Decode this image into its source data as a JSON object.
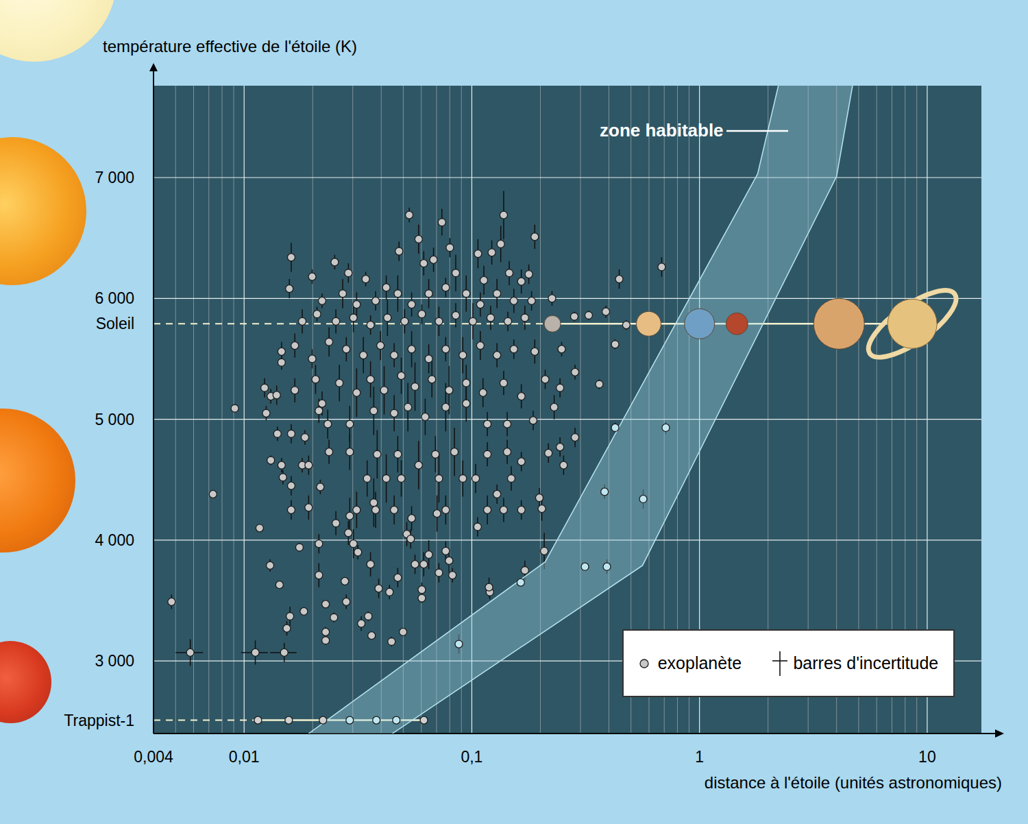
{
  "chart_data": {
    "type": "scatter",
    "x_label": "distance à l'étoile (unités astronomiques)",
    "y_label": "température effective de l'étoile (K)",
    "log": "x",
    "grid": true,
    "legend": "lower right",
    "xlim": [
      0.004,
      17.3
    ],
    "xticks": [
      {
        "value": 0.004,
        "label": "0,004"
      },
      {
        "value": 0.01,
        "label": "0,01"
      },
      {
        "value": 0.1,
        "label": "0,1"
      },
      1,
      10
    ],
    "ylim": [
      2400,
      7760
    ],
    "yticks": [
      {
        "value": 3000,
        "label": "3 000"
      },
      {
        "value": 4000,
        "label": "4 000"
      },
      {
        "value": 5000,
        "label": "5 000"
      },
      {
        "value": 6000,
        "label": "6 000"
      },
      {
        "value": 7000,
        "label": "7 000"
      },
      {
        "value": 5790,
        "label": "Soleil"
      },
      {
        "value": 2510,
        "label": "Trappist-1"
      }
    ],
    "error_bars_name": "barres d'incertitude",
    "habitable_zone": {
      "label": "zone habitable",
      "color": "#9fd6e6",
      "inner": {
        "x": [
          0.0192,
          0.21,
          1.8,
          2.22
        ],
        "y": [
          2400,
          3820,
          7030,
          7760
        ]
      },
      "outer": {
        "x": [
          0.0448,
          0.562,
          4.0,
          4.7
        ],
        "y": [
          2400,
          3790,
          7010,
          7760
        ]
      }
    },
    "series": [
      {
        "name": "exoplanète",
        "color": "#c8c8c8",
        "marker": "circle",
        "x": [
          0.0048,
          0.0058,
          0.0073,
          0.0091,
          0.0112,
          0.015,
          0.0117,
          0.013,
          0.0143,
          0.0154,
          0.0159,
          0.0175,
          0.0183,
          0.0228,
          0.0228,
          0.0248,
          0.0228,
          0.0277,
          0.0287,
          0.0327,
          0.0351,
          0.0363,
          0.0444,
          0.0499,
          0.0161,
          0.0199,
          0.0531,
          0.0739,
          0.138,
          0.189,
          0.0479,
          0.0679,
          0.0801,
          0.1064,
          0.1224,
          0.134,
          0.146,
          0.178,
          0.025,
          0.0287,
          0.0342,
          0.0421,
          0.0584,
          0.0615,
          0.085,
          0.113,
          0.165,
          0.0158,
          0.018,
          0.022,
          0.0271,
          0.0312,
          0.0378,
          0.0473,
          0.0544,
          0.0647,
          0.0768,
          0.0945,
          0.109,
          0.129,
          0.153,
          0.183,
          0.0209,
          0.0253,
          0.0302,
          0.0359,
          0.0426,
          0.0507,
          0.0603,
          0.0717,
          0.085,
          0.101,
          0.121,
          0.144,
          0.171,
          0.0146,
          0.0146,
          0.0167,
          0.0199,
          0.0236,
          0.0281,
          0.0334,
          0.0397,
          0.0456,
          0.0544,
          0.0647,
          0.0768,
          0.0913,
          0.109,
          0.129,
          0.153,
          0.0123,
          0.0131,
          0.0125,
          0.0139,
          0.0167,
          0.0206,
          0.022,
          0.0262,
          0.0312,
          0.0359,
          0.0412,
          0.049,
          0.0563,
          0.0668,
          0.0795,
          0.0945,
          0.112,
          0.138,
          0.165,
          0.21,
          0.014,
          0.0161,
          0.0185,
          0.0213,
          0.0233,
          0.0291,
          0.0371,
          0.0456,
          0.0524,
          0.0624,
          0.0768,
          0.0945,
          0.117,
          0.143,
          0.186,
          0.0236,
          0.0291,
          0.0384,
          0.0473,
          0.0584,
          0.0692,
          0.0839,
          0.117,
          0.143,
          0.165,
          0.217,
          0.0131,
          0.0146,
          0.0148,
          0.0161,
          0.018,
          0.0192,
          0.0216,
          0.0347,
          0.0421,
          0.049,
          0.0717,
          0.0913,
          0.104,
          0.149,
          0.129,
          0.138,
          0.165,
          0.198,
          0.117,
          0.0161,
          0.0192,
          0.0291,
          0.0371,
          0.0378,
          0.0456,
          0.0544,
          0.0703,
          0.0768,
          0.106,
          0.0518,
          0.0539,
          0.0253,
          0.0312,
          0.0302,
          0.0213,
          0.0316,
          0.0359,
          0.0563,
          0.0615,
          0.0647,
          0.0768,
          0.0795,
          0.0822,
          0.0717,
          0.0603,
          0.0603,
          0.0473,
          0.0435,
          0.039,
          0.0281,
          0.0213,
          0.12,
          0.119,
          0.171,
          0.203,
          0.208,
          0.244,
          0.253,
          0.284,
          0.23,
          0.244,
          0.189,
          0.248,
          0.225,
          0.282,
          0.326,
          0.388,
          0.444,
          0.682,
          0.477,
          0.426,
          0.284,
          0.363
        ],
        "values": [
          3490,
          3070,
          4380,
          5090,
          3070,
          3070,
          4100,
          3790,
          3630,
          3270,
          3370,
          3940,
          3410,
          3240,
          3470,
          3360,
          3170,
          3660,
          4060,
          3310,
          3370,
          3210,
          3160,
          3240,
          6340,
          6180,
          6690,
          6630,
          6690,
          6510,
          6390,
          6320,
          6420,
          6370,
          6380,
          6450,
          6210,
          6200,
          6300,
          6210,
          6160,
          6090,
          6490,
          6290,
          6210,
          6150,
          6140,
          6080,
          5810,
          5980,
          6040,
          5950,
          5980,
          6040,
          5950,
          6040,
          6090,
          6040,
          5950,
          6040,
          5980,
          5980,
          5870,
          5810,
          5840,
          5780,
          5840,
          5810,
          5870,
          5810,
          5860,
          5810,
          5840,
          5810,
          5840,
          5560,
          5470,
          5610,
          5500,
          5640,
          5580,
          5530,
          5610,
          5530,
          5580,
          5500,
          5580,
          5530,
          5610,
          5530,
          5580,
          5260,
          5190,
          5050,
          5200,
          5240,
          5330,
          5130,
          5300,
          5220,
          5330,
          5240,
          5360,
          5270,
          5330,
          5240,
          5300,
          5220,
          5300,
          5190,
          5330,
          4880,
          4880,
          4850,
          5070,
          4960,
          4960,
          5070,
          5050,
          5100,
          5020,
          5100,
          5130,
          4960,
          4960,
          4990,
          4730,
          4730,
          4710,
          4710,
          4620,
          4710,
          4730,
          4710,
          4730,
          4650,
          4720,
          4660,
          4620,
          4520,
          4450,
          4620,
          4620,
          4440,
          4510,
          4510,
          4510,
          4510,
          4510,
          4510,
          4510,
          4380,
          4250,
          4250,
          4350,
          4250,
          4250,
          4270,
          4200,
          4310,
          4250,
          4250,
          4180,
          4220,
          4250,
          4110,
          4050,
          4010,
          4140,
          4250,
          3970,
          3970,
          3900,
          3800,
          3800,
          3800,
          3880,
          3910,
          3830,
          3710,
          3730,
          3590,
          3520,
          3690,
          3570,
          3600,
          3490,
          3710,
          3570,
          3610,
          3750,
          4260,
          3910,
          4770,
          4620,
          4850,
          5100,
          5260,
          5560,
          5580,
          6000,
          5850,
          5860,
          5890,
          6160,
          6260,
          5780,
          5620,
          5390,
          5290
        ],
        "y_err": [
          60,
          110,
          30,
          20,
          100,
          80,
          20,
          50,
          20,
          60,
          80,
          20,
          20,
          40,
          30,
          40,
          30,
          20,
          100,
          60,
          40,
          20,
          40,
          30,
          120,
          60,
          60,
          110,
          200,
          100,
          80,
          100,
          80,
          120,
          100,
          150,
          100,
          80,
          60,
          80,
          60,
          100,
          120,
          100,
          150,
          120,
          100,
          80,
          100,
          60,
          120,
          100,
          80,
          150,
          100,
          120,
          80,
          150,
          100,
          120,
          100,
          80,
          60,
          100,
          120,
          80,
          150,
          100,
          80,
          120,
          100,
          150,
          100,
          80,
          100,
          80,
          60,
          100,
          80,
          120,
          100,
          150,
          120,
          100,
          150,
          120,
          100,
          150,
          120,
          100,
          80,
          80,
          60,
          60,
          80,
          100,
          120,
          100,
          150,
          200,
          150,
          200,
          150,
          200,
          150,
          200,
          150,
          120,
          100,
          100,
          80,
          60,
          80,
          60,
          100,
          120,
          150,
          200,
          150,
          200,
          150,
          200,
          150,
          100,
          100,
          80,
          100,
          150,
          200,
          150,
          200,
          150,
          200,
          100,
          100,
          80,
          80,
          40,
          60,
          60,
          80,
          60,
          80,
          60,
          150,
          200,
          150,
          200,
          150,
          120,
          100,
          80,
          100,
          80,
          80,
          120,
          80,
          100,
          150,
          200,
          150,
          120,
          100,
          150,
          120,
          80,
          100,
          80,
          100,
          150,
          120,
          80,
          60,
          100,
          80,
          100,
          120,
          80,
          100,
          60,
          80,
          60,
          40,
          80,
          60,
          80,
          60,
          100,
          60,
          80,
          80,
          100,
          150,
          80,
          80,
          80,
          100,
          80,
          100,
          60,
          60,
          40,
          40,
          50,
          80,
          80,
          40,
          40,
          60,
          40
        ],
        "x_err": [
          null,
          0.0008,
          null,
          null,
          0.0015,
          0.002,
          null,
          null,
          null,
          null,
          null,
          null,
          null,
          null,
          null,
          null,
          null,
          null,
          null,
          null,
          null,
          null,
          null,
          null,
          null,
          null,
          null,
          null,
          null,
          null,
          null,
          null,
          null,
          null,
          null,
          null,
          null,
          null,
          null,
          null,
          null,
          null,
          null,
          null,
          null,
          null,
          null,
          null,
          null,
          null,
          null,
          null,
          null,
          null,
          null,
          null,
          null,
          null,
          null,
          null,
          null,
          null,
          null,
          null,
          null,
          null,
          null,
          null,
          null,
          null,
          null,
          null,
          null,
          null,
          null,
          null,
          null,
          null,
          null,
          null,
          null,
          null,
          null,
          null,
          null,
          null,
          null,
          null,
          null,
          null,
          null,
          null,
          null,
          null,
          null,
          null,
          null,
          null,
          null,
          null,
          null,
          null,
          null,
          null,
          null,
          null,
          null,
          null,
          null,
          null,
          null,
          null,
          null,
          null,
          null,
          null,
          null,
          null,
          null,
          null,
          null,
          null,
          null,
          null,
          null,
          null,
          null,
          null,
          null,
          null,
          null,
          null,
          null,
          null,
          null,
          null,
          null,
          null,
          null,
          null,
          null,
          null,
          null,
          null,
          null,
          null,
          null,
          null,
          null,
          null,
          null,
          null,
          null,
          null,
          null,
          null,
          null,
          null,
          null,
          null,
          null,
          null,
          null,
          null,
          null,
          null,
          null,
          null,
          null,
          null,
          null,
          null,
          null,
          null,
          null,
          null,
          null,
          null,
          null,
          null,
          null,
          null,
          null,
          null,
          null,
          null,
          null,
          null,
          null,
          null,
          null,
          null,
          null,
          null,
          null,
          null,
          null,
          null,
          null,
          null,
          null,
          null,
          null,
          null,
          null,
          null,
          null,
          null,
          null
        ]
      },
      {
        "color": "#bfe6f0",
        "marker": "circle",
        "x": [
          0.0877,
          0.164,
          0.314,
          0.392,
          0.383,
          0.566,
          0.426,
          0.711
        ],
        "values": [
          3140,
          3650,
          3780,
          3780,
          4400,
          4340,
          4930,
          4930
        ],
        "y_err": [
          80,
          30,
          30,
          60,
          60,
          80,
          40,
          50
        ]
      },
      {
        "marker": "planet",
        "line_style": "solid",
        "colors": [
          "#b9b2aa",
          "#e7bd84",
          "#6f9fc4",
          "#b5472c",
          "#d9a46c",
          "#e6c27f"
        ],
        "x": [
          0.226,
          0.598,
          1.0,
          1.46,
          4.1,
          8.6
        ],
        "values": [
          5790,
          5790,
          5790,
          5790,
          5790,
          5790
        ]
      },
      {
        "marker": "circle",
        "line_style": "solid",
        "colors": [
          "#cfcfcf",
          "#cfcfcf",
          "#cfcfcf",
          "#bfe6f0",
          "#bfe6f0",
          "#bfe6f0",
          "#cfcfcf"
        ],
        "x": [
          0.0115,
          0.0157,
          0.0222,
          0.0291,
          0.0381,
          0.0466,
          0.0616
        ],
        "values": [
          2510,
          2510,
          2510,
          2510,
          2510,
          2510,
          2510
        ]
      }
    ]
  }
}
